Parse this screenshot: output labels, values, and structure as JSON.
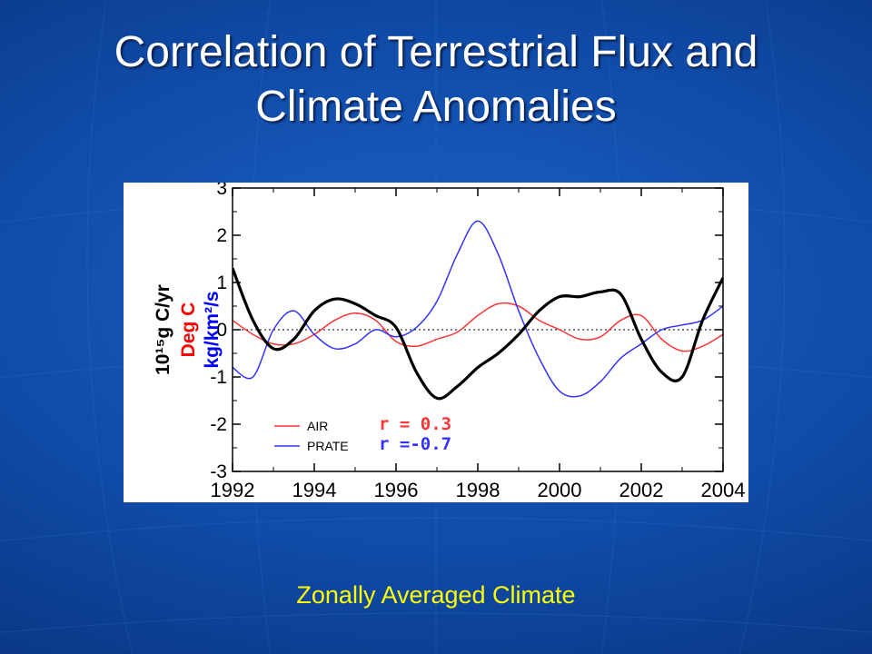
{
  "slide": {
    "title_line1": "Correlation of Terrestrial Flux and",
    "title_line2": "Climate Anomalies",
    "caption": "Zonally Averaged Climate"
  },
  "colors": {
    "flux": "#000000",
    "air": "#ff3333",
    "prate": "#3333ff",
    "ylabel_flux": "#000000",
    "ylabel_air": "#ff0000",
    "ylabel_prate": "#0000ff"
  },
  "chart_data": {
    "type": "line",
    "xlim": [
      1992,
      2004
    ],
    "ylim": [
      -3,
      3
    ],
    "xticks": [
      1992,
      1994,
      1996,
      1998,
      2000,
      2002,
      2004
    ],
    "yticks": [
      -3,
      -2,
      -1,
      0,
      1,
      2,
      3
    ],
    "ylabel_lines": [
      {
        "text": "10¹⁵g C/yr",
        "color": "#000000"
      },
      {
        "text": "Deg C",
        "color": "#ff0000"
      },
      {
        "text": "kg/km²/s",
        "color": "#0000ff"
      }
    ],
    "zero_line": "dotted",
    "series": [
      {
        "key": "flux",
        "color": "#000000",
        "x": [
          1992.0,
          1992.5,
          1993.0,
          1993.5,
          1994.0,
          1994.5,
          1995.0,
          1995.5,
          1996.0,
          1996.5,
          1997.0,
          1997.5,
          1998.0,
          1998.5,
          1999.0,
          1999.5,
          2000.0,
          2000.5,
          2001.0,
          2001.5,
          2002.0,
          2002.5,
          2003.0,
          2003.5,
          2004.0
        ],
        "y": [
          1.3,
          0.2,
          -0.4,
          -0.2,
          0.4,
          0.65,
          0.55,
          0.3,
          0.05,
          -0.9,
          -1.45,
          -1.2,
          -0.8,
          -0.5,
          -0.1,
          0.4,
          0.7,
          0.7,
          0.8,
          0.75,
          -0.2,
          -0.9,
          -1.0,
          0.2,
          1.1
        ]
      },
      {
        "key": "air",
        "color": "#ff3333",
        "x": [
          1992.0,
          1992.5,
          1993.0,
          1993.5,
          1994.0,
          1994.5,
          1995.0,
          1995.5,
          1996.0,
          1996.5,
          1997.0,
          1997.5,
          1998.0,
          1998.5,
          1999.0,
          1999.5,
          2000.0,
          2000.5,
          2001.0,
          2001.5,
          2002.0,
          2002.5,
          2003.0,
          2003.5,
          2004.0
        ],
        "y": [
          0.2,
          -0.1,
          -0.3,
          -0.3,
          -0.1,
          0.2,
          0.35,
          0.2,
          -0.25,
          -0.35,
          -0.2,
          -0.05,
          0.3,
          0.55,
          0.5,
          0.2,
          0.0,
          -0.2,
          -0.15,
          0.2,
          0.3,
          -0.2,
          -0.45,
          -0.35,
          -0.1
        ]
      },
      {
        "key": "prate",
        "color": "#3333ff",
        "x": [
          1992.0,
          1992.5,
          1993.0,
          1993.5,
          1994.0,
          1994.5,
          1995.0,
          1995.5,
          1996.0,
          1996.5,
          1997.0,
          1997.5,
          1998.0,
          1998.5,
          1999.0,
          1999.5,
          2000.0,
          2000.5,
          2001.0,
          2001.5,
          2002.0,
          2002.5,
          2003.0,
          2003.5,
          2004.0
        ],
        "y": [
          -0.8,
          -1.0,
          0.0,
          0.4,
          -0.1,
          -0.4,
          -0.3,
          0.0,
          -0.15,
          0.05,
          0.6,
          1.6,
          2.3,
          1.6,
          0.4,
          -0.6,
          -1.3,
          -1.4,
          -1.1,
          -0.6,
          -0.3,
          0.0,
          0.1,
          0.2,
          0.5
        ]
      }
    ],
    "legend": {
      "placement": "bottom-left",
      "items": [
        {
          "label": "AIR",
          "color": "#ff3333",
          "r_text": "r = 0.3"
        },
        {
          "label": "PRATE",
          "color": "#3333ff",
          "r_text": "r =-0.7"
        }
      ]
    }
  }
}
